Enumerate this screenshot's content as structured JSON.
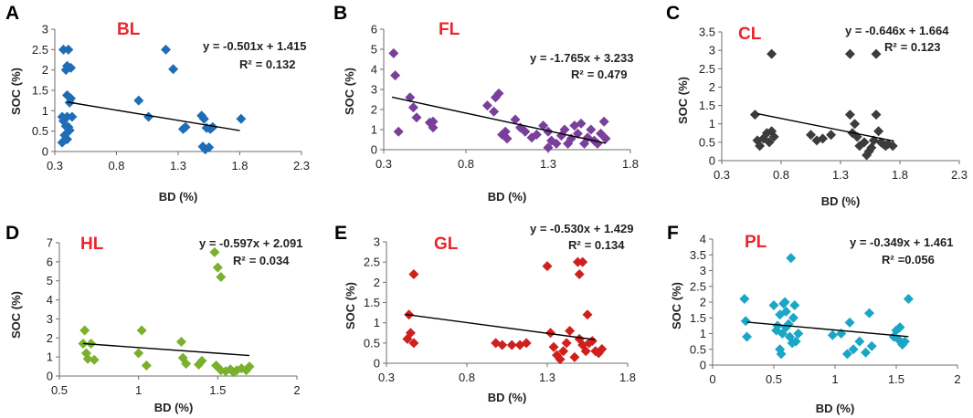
{
  "figure": {
    "color_title": "#e8262d",
    "chart_data": [
      {
        "type": "scatter",
        "letter": "A",
        "title": "BL",
        "color": "#1f6db5",
        "xlabel": "BD (%)",
        "ylabel": "SOC (%)",
        "xlim": [
          0.3,
          2.3
        ],
        "ylim": [
          0,
          3
        ],
        "xticks": [
          "0.3",
          "0.8",
          "1.3",
          "1.8",
          "2.3"
        ],
        "xtick_values": [
          0.3,
          0.8,
          1.3,
          1.8,
          2.3
        ],
        "yticks": [
          "0",
          "0.5",
          "1",
          "1.5",
          "2",
          "2.5",
          "3"
        ],
        "ytick_values": [
          0,
          0.5,
          1,
          1.5,
          2,
          2.5,
          3
        ],
        "equation": "y = -0.501x + 1.415",
        "r2_label": "R²",
        "r2": "= 0.132",
        "trend": {
          "slope": -0.501,
          "intercept": 1.415,
          "x0": 0.4,
          "x1": 1.8
        },
        "points": [
          [
            0.37,
            2.5
          ],
          [
            0.41,
            2.5
          ],
          [
            0.4,
            2.1
          ],
          [
            0.43,
            2.05
          ],
          [
            0.39,
            2.0
          ],
          [
            0.4,
            1.38
          ],
          [
            0.43,
            1.3
          ],
          [
            0.42,
            1.2
          ],
          [
            0.36,
            0.85
          ],
          [
            0.4,
            0.85
          ],
          [
            0.44,
            0.85
          ],
          [
            0.37,
            0.75
          ],
          [
            0.39,
            0.62
          ],
          [
            0.41,
            0.6
          ],
          [
            0.42,
            0.52
          ],
          [
            0.38,
            0.4
          ],
          [
            0.4,
            0.3
          ],
          [
            0.36,
            0.22
          ],
          [
            0.98,
            1.25
          ],
          [
            1.06,
            0.85
          ],
          [
            1.2,
            2.5
          ],
          [
            1.26,
            2.02
          ],
          [
            1.34,
            0.55
          ],
          [
            1.36,
            0.6
          ],
          [
            1.49,
            0.88
          ],
          [
            1.51,
            0.8
          ],
          [
            1.53,
            0.58
          ],
          [
            1.56,
            0.55
          ],
          [
            1.58,
            0.6
          ],
          [
            1.5,
            0.12
          ],
          [
            1.52,
            0.05
          ],
          [
            1.55,
            0.1
          ],
          [
            1.81,
            0.8
          ]
        ]
      },
      {
        "type": "scatter",
        "letter": "B",
        "title": "FL",
        "color": "#7a3f9a",
        "xlabel": "BD (%)",
        "ylabel": "SOC (%)",
        "xlim": [
          0.3,
          1.8
        ],
        "ylim": [
          0,
          6
        ],
        "xticks": [
          "0.3",
          "0.8",
          "1.3",
          "1.8"
        ],
        "xtick_values": [
          0.3,
          0.8,
          1.3,
          1.8
        ],
        "yticks": [
          "0",
          "1",
          "2",
          "3",
          "4",
          "5",
          "6"
        ],
        "ytick_values": [
          0,
          1,
          2,
          3,
          4,
          5,
          6
        ],
        "equation": "y = -1.765x + 3.233",
        "r2_label": "R²",
        "r2": "= 0.479",
        "trend": {
          "slope": -1.765,
          "intercept": 3.233,
          "x0": 0.35,
          "x1": 1.65
        },
        "points": [
          [
            0.36,
            4.8
          ],
          [
            0.37,
            3.7
          ],
          [
            0.39,
            0.9
          ],
          [
            0.46,
            2.6
          ],
          [
            0.48,
            2.1
          ],
          [
            0.5,
            1.6
          ],
          [
            0.58,
            1.35
          ],
          [
            0.6,
            1.1
          ],
          [
            0.6,
            1.4
          ],
          [
            0.93,
            2.2
          ],
          [
            0.98,
            2.6
          ],
          [
            1.0,
            2.8
          ],
          [
            0.97,
            1.9
          ],
          [
            1.02,
            0.75
          ],
          [
            1.05,
            0.55
          ],
          [
            1.04,
            0.9
          ],
          [
            1.1,
            1.5
          ],
          [
            1.13,
            1.1
          ],
          [
            1.16,
            0.9
          ],
          [
            1.2,
            0.6
          ],
          [
            1.23,
            0.75
          ],
          [
            1.27,
            1.2
          ],
          [
            1.3,
            0.9
          ],
          [
            1.32,
            0.45
          ],
          [
            1.35,
            0.3
          ],
          [
            1.3,
            0.1
          ],
          [
            1.38,
            0.7
          ],
          [
            1.4,
            1.0
          ],
          [
            1.42,
            0.3
          ],
          [
            1.44,
            0.55
          ],
          [
            1.46,
            1.2
          ],
          [
            1.48,
            0.8
          ],
          [
            1.5,
            1.3
          ],
          [
            1.52,
            0.3
          ],
          [
            1.54,
            0.6
          ],
          [
            1.56,
            1.0
          ],
          [
            1.58,
            0.45
          ],
          [
            1.6,
            0.3
          ],
          [
            1.62,
            0.8
          ],
          [
            1.64,
            1.4
          ],
          [
            1.65,
            0.55
          ]
        ]
      },
      {
        "type": "scatter",
        "letter": "C",
        "title": "CL",
        "color": "#3c3c3c",
        "xlabel": "BD (%)",
        "ylabel": "SOC (%)",
        "xlim": [
          0.3,
          2.3
        ],
        "ylim": [
          0,
          3.5
        ],
        "xticks": [
          "0.3",
          "0.8",
          "1.3",
          "1.8",
          "2.3"
        ],
        "xtick_values": [
          0.3,
          0.8,
          1.3,
          1.8,
          2.3
        ],
        "yticks": [
          "0",
          "0.5",
          "1",
          "1.5",
          "2",
          "2.5",
          "3",
          "3.5"
        ],
        "ytick_values": [
          0,
          0.5,
          1,
          1.5,
          2,
          2.5,
          3,
          3.5
        ],
        "equation": "y = -0.646x + 1.664",
        "r2_label": "R²",
        "r2": "= 0.123",
        "trend": {
          "slope": -0.646,
          "intercept": 1.664,
          "x0": 0.6,
          "x1": 1.75
        },
        "points": [
          [
            0.72,
            2.9
          ],
          [
            0.58,
            1.25
          ],
          [
            0.6,
            0.55
          ],
          [
            0.62,
            0.4
          ],
          [
            0.65,
            0.6
          ],
          [
            0.68,
            0.75
          ],
          [
            0.7,
            0.5
          ],
          [
            0.72,
            0.8
          ],
          [
            0.74,
            0.65
          ],
          [
            1.05,
            0.7
          ],
          [
            1.1,
            0.55
          ],
          [
            1.15,
            0.6
          ],
          [
            1.22,
            0.7
          ],
          [
            1.38,
            2.9
          ],
          [
            1.38,
            1.25
          ],
          [
            1.4,
            0.75
          ],
          [
            1.42,
            1.0
          ],
          [
            1.44,
            0.65
          ],
          [
            1.46,
            0.4
          ],
          [
            1.5,
            0.5
          ],
          [
            1.52,
            0.15
          ],
          [
            1.54,
            0.25
          ],
          [
            1.56,
            0.35
          ],
          [
            1.58,
            0.55
          ],
          [
            1.6,
            2.9
          ],
          [
            1.6,
            1.25
          ],
          [
            1.62,
            0.8
          ],
          [
            1.64,
            0.5
          ],
          [
            1.66,
            0.45
          ],
          [
            1.68,
            0.4
          ],
          [
            1.7,
            0.45
          ],
          [
            1.74,
            0.4
          ]
        ]
      },
      {
        "type": "scatter",
        "letter": "D",
        "title": "HL",
        "color": "#7ab02c",
        "xlabel": "BD (%)",
        "ylabel": "SOC (%)",
        "xlim": [
          0.5,
          2
        ],
        "ylim": [
          0,
          7
        ],
        "xticks": [
          "0.5",
          "1",
          "1.5",
          "2"
        ],
        "xtick_values": [
          0.5,
          1,
          1.5,
          2
        ],
        "yticks": [
          "0",
          "1",
          "2",
          "3",
          "4",
          "5",
          "6",
          "7"
        ],
        "ytick_values": [
          0,
          1,
          2,
          3,
          4,
          5,
          6,
          7
        ],
        "equation": "y = -0.597x + 2.091",
        "r2_label": "R²",
        "r2": "= 0.034",
        "trend": {
          "slope": -0.597,
          "intercept": 2.091,
          "x0": 0.65,
          "x1": 1.7
        },
        "points": [
          [
            0.65,
            1.7
          ],
          [
            0.66,
            2.4
          ],
          [
            0.67,
            1.2
          ],
          [
            0.68,
            0.9
          ],
          [
            0.7,
            1.7
          ],
          [
            0.72,
            0.85
          ],
          [
            1.0,
            1.2
          ],
          [
            1.02,
            2.4
          ],
          [
            1.05,
            0.55
          ],
          [
            1.27,
            1.8
          ],
          [
            1.28,
            0.95
          ],
          [
            1.3,
            0.65
          ],
          [
            1.38,
            0.6
          ],
          [
            1.4,
            0.8
          ],
          [
            1.48,
            6.5
          ],
          [
            1.5,
            5.7
          ],
          [
            1.52,
            5.2
          ],
          [
            1.49,
            0.55
          ],
          [
            1.52,
            0.3
          ],
          [
            1.55,
            0.25
          ],
          [
            1.58,
            0.35
          ],
          [
            1.6,
            0.2
          ],
          [
            1.62,
            0.3
          ],
          [
            1.65,
            0.4
          ],
          [
            1.68,
            0.3
          ],
          [
            1.7,
            0.5
          ]
        ]
      },
      {
        "type": "scatter",
        "letter": "E",
        "title": "GL",
        "color": "#d0201d",
        "xlabel": "BD (%)",
        "ylabel": "SOC (%)",
        "xlim": [
          0.3,
          1.8
        ],
        "ylim": [
          0,
          3
        ],
        "xticks": [
          "0.3",
          "0.8",
          "1.3",
          "1.8"
        ],
        "xtick_values": [
          0.3,
          0.8,
          1.3,
          1.8
        ],
        "yticks": [
          "0",
          "0.5",
          "1",
          "1.5",
          "2",
          "2.5",
          "3"
        ],
        "ytick_values": [
          0,
          0.5,
          1,
          1.5,
          2,
          2.5,
          3
        ],
        "equation": "y = -0.530x + 1.429",
        "r2_label": "R²",
        "r2": "= 0.134",
        "trend": {
          "slope": -0.53,
          "intercept": 1.429,
          "x0": 0.42,
          "x1": 1.6
        },
        "points": [
          [
            0.47,
            2.2
          ],
          [
            0.44,
            1.2
          ],
          [
            0.45,
            0.75
          ],
          [
            0.43,
            0.6
          ],
          [
            0.47,
            0.5
          ],
          [
            0.98,
            0.5
          ],
          [
            1.02,
            0.45
          ],
          [
            1.08,
            0.45
          ],
          [
            1.13,
            0.45
          ],
          [
            1.17,
            0.5
          ],
          [
            1.3,
            2.4
          ],
          [
            1.32,
            0.75
          ],
          [
            1.34,
            0.4
          ],
          [
            1.36,
            0.2
          ],
          [
            1.38,
            0.1
          ],
          [
            1.4,
            0.3
          ],
          [
            1.42,
            0.5
          ],
          [
            1.44,
            0.8
          ],
          [
            1.47,
            0.15
          ],
          [
            1.49,
            2.5
          ],
          [
            1.5,
            2.2
          ],
          [
            1.52,
            2.5
          ],
          [
            1.5,
            0.6
          ],
          [
            1.52,
            0.45
          ],
          [
            1.54,
            0.3
          ],
          [
            1.55,
            1.2
          ],
          [
            1.56,
            0.5
          ],
          [
            1.58,
            0.55
          ],
          [
            1.6,
            0.3
          ],
          [
            1.62,
            0.25
          ],
          [
            1.64,
            0.35
          ]
        ]
      },
      {
        "type": "scatter",
        "letter": "F",
        "title": "PL",
        "color": "#1ba6c6",
        "xlabel": "BD (%)",
        "ylabel": "SOC (%)",
        "xlim": [
          0,
          2
        ],
        "ylim": [
          0,
          4
        ],
        "xticks": [
          "0",
          "0.5",
          "1",
          "1.5",
          "2"
        ],
        "xtick_values": [
          0,
          0.5,
          1,
          1.5,
          2
        ],
        "yticks": [
          "0",
          "0.5",
          "1",
          "1.5",
          "2",
          "2.5",
          "3",
          "3.5",
          "4"
        ],
        "ytick_values": [
          0,
          0.5,
          1,
          1.5,
          2,
          2.5,
          3,
          3.5,
          4
        ],
        "equation": "y = -0.349x + 1.461",
        "r2_label": "R²",
        "r2": "=0.056",
        "trend": {
          "slope": -0.349,
          "intercept": 1.461,
          "x0": 0.28,
          "x1": 1.6
        },
        "points": [
          [
            0.26,
            2.1
          ],
          [
            0.27,
            1.4
          ],
          [
            0.28,
            0.9
          ],
          [
            0.5,
            1.9
          ],
          [
            0.52,
            1.1
          ],
          [
            0.53,
            1.25
          ],
          [
            0.55,
            1.6
          ],
          [
            0.55,
            0.5
          ],
          [
            0.56,
            0.35
          ],
          [
            0.57,
            1.0
          ],
          [
            0.58,
            1.95
          ],
          [
            0.59,
            2.0
          ],
          [
            0.6,
            1.7
          ],
          [
            0.6,
            1.2
          ],
          [
            0.62,
            1.3
          ],
          [
            0.63,
            0.9
          ],
          [
            0.64,
            3.4
          ],
          [
            0.65,
            0.7
          ],
          [
            0.66,
            1.5
          ],
          [
            0.67,
            1.9
          ],
          [
            0.68,
            0.75
          ],
          [
            0.7,
            1.0
          ],
          [
            0.98,
            0.95
          ],
          [
            1.05,
            1.0
          ],
          [
            1.1,
            0.35
          ],
          [
            1.12,
            1.35
          ],
          [
            1.15,
            0.5
          ],
          [
            1.2,
            0.75
          ],
          [
            1.25,
            0.4
          ],
          [
            1.28,
            1.65
          ],
          [
            1.3,
            0.6
          ],
          [
            1.48,
            0.9
          ],
          [
            1.5,
            1.1
          ],
          [
            1.52,
            0.8
          ],
          [
            1.53,
            1.2
          ],
          [
            1.55,
            0.65
          ],
          [
            1.57,
            0.75
          ],
          [
            1.6,
            2.1
          ]
        ]
      }
    ]
  }
}
